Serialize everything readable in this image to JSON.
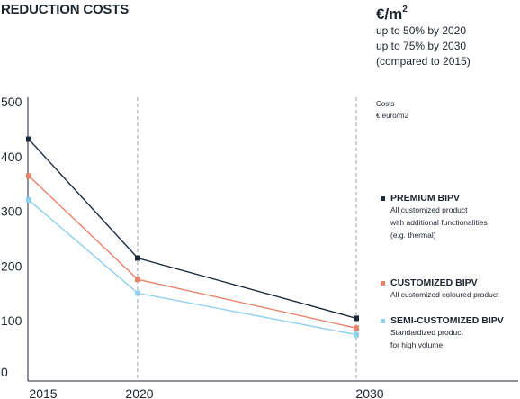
{
  "header": {
    "title": "REDUCTION COSTS",
    "unit_main": "€/m",
    "unit_sup": "2",
    "notes": [
      "up to 50% by 2020",
      "up to 75% by 2030",
      "(compared to 2015)"
    ],
    "costs_label": [
      "Costs",
      "€ euro/m2"
    ]
  },
  "legend": [
    {
      "name": "PREMIUM BIPV",
      "color": "#1b2a3a",
      "desc": [
        "All customized product",
        "with additional functionalities",
        "(e.g. thermal)"
      ]
    },
    {
      "name": "CUSTOMIZED BIPV",
      "color": "#e8836b",
      "desc": [
        "All customized coloured product"
      ]
    },
    {
      "name": "SEMI-CUSTOMIZED BIPV",
      "color": "#8fd0ee",
      "desc": [
        "Standardized product",
        "for high volume"
      ]
    }
  ],
  "chart_data": {
    "type": "line",
    "x": [
      2015,
      2020,
      2030
    ],
    "xlabel": "",
    "ylabel": "",
    "ylim": [
      0,
      500
    ],
    "yticks": [
      0,
      100,
      200,
      300,
      400,
      500
    ],
    "series": [
      {
        "name": "PREMIUM BIPV",
        "color": "#1b2a3a",
        "values": [
          430,
          213,
          103
        ]
      },
      {
        "name": "CUSTOMIZED BIPV",
        "color": "#e8836b",
        "values": [
          363,
          174,
          85
        ]
      },
      {
        "name": "SEMI-CUSTOMIZED BIPV",
        "color": "#8fd0ee",
        "values": [
          319,
          149,
          73
        ]
      }
    ],
    "grid": false,
    "vertical_guides": [
      2020,
      2030
    ]
  }
}
